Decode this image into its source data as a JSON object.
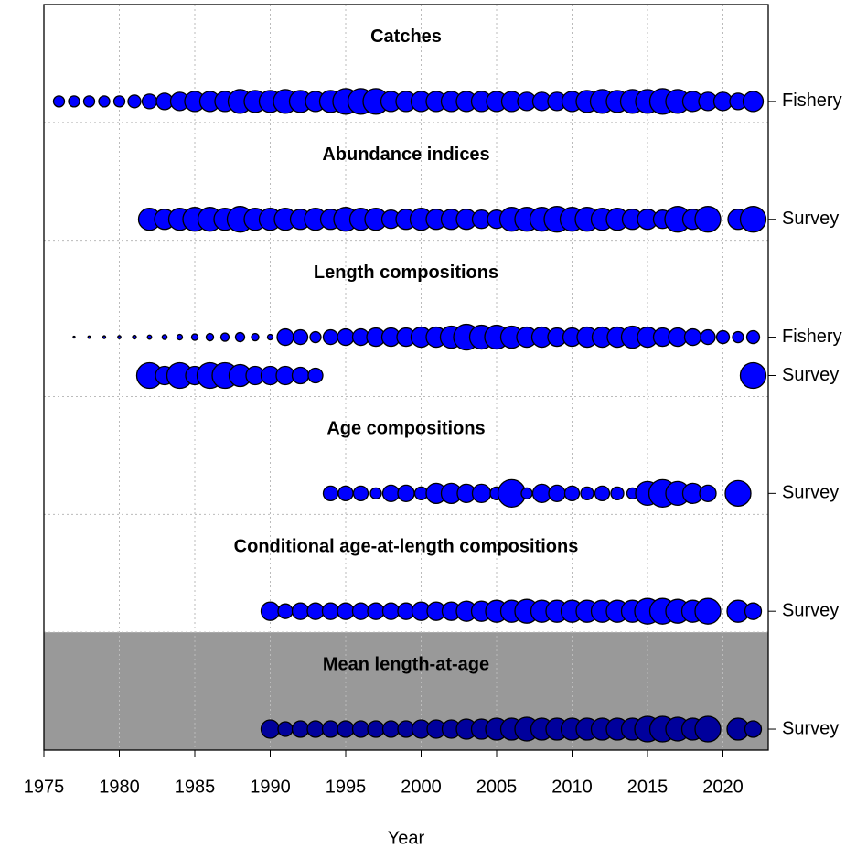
{
  "chart_data": {
    "type": "bubble",
    "xlabel": "Year",
    "xlim": [
      1975,
      2023
    ],
    "xticks": [
      1975,
      1980,
      1985,
      1990,
      1995,
      2000,
      2005,
      2010,
      2015,
      2020
    ],
    "grid": true,
    "color": "#0000ff",
    "panels": [
      {
        "title": "Catches",
        "rows": [
          {
            "name": "Fishery",
            "x": [
              1976,
              1977,
              1978,
              1979,
              1980,
              1981,
              1982,
              1983,
              1984,
              1985,
              1986,
              1987,
              1988,
              1989,
              1990,
              1991,
              1992,
              1993,
              1994,
              1995,
              1996,
              1997,
              1998,
              1999,
              2000,
              2001,
              2002,
              2003,
              2004,
              2005,
              2006,
              2007,
              2008,
              2009,
              2010,
              2011,
              2012,
              2013,
              2014,
              2015,
              2016,
              2017,
              2018,
              2019,
              2020,
              2021,
              2022
            ],
            "sizes": [
              6,
              6,
              6,
              6,
              6,
              7,
              8,
              9,
              10,
              11,
              11,
              11,
              13,
              12,
              12,
              13,
              12,
              11,
              12,
              14,
              14,
              14,
              11,
              11,
              11,
              11,
              11,
              11,
              11,
              11,
              11,
              10,
              10,
              10,
              11,
              12,
              13,
              12,
              13,
              13,
              14,
              13,
              11,
              10,
              10,
              9,
              11
            ]
          }
        ]
      },
      {
        "title": "Abundance indices",
        "rows": [
          {
            "name": "Survey",
            "x": [
              1982,
              1983,
              1984,
              1985,
              1986,
              1987,
              1988,
              1989,
              1990,
              1991,
              1992,
              1993,
              1994,
              1995,
              1996,
              1997,
              1998,
              1999,
              2000,
              2001,
              2002,
              2003,
              2004,
              2005,
              2006,
              2007,
              2008,
              2009,
              2010,
              2011,
              2012,
              2013,
              2014,
              2015,
              2016,
              2017,
              2018,
              2019,
              2021,
              2022
            ],
            "sizes": [
              12,
              11,
              12,
              13,
              13,
              12,
              14,
              12,
              12,
              12,
              11,
              12,
              11,
              13,
              12,
              12,
              10,
              11,
              12,
              11,
              11,
              11,
              10,
              10,
              13,
              13,
              13,
              14,
              13,
              13,
              12,
              12,
              11,
              11,
              10,
              14,
              11,
              14,
              11,
              14
            ]
          }
        ]
      },
      {
        "title": "Length compositions",
        "rows": [
          {
            "name": "Fishery",
            "x": [
              1977,
              1978,
              1979,
              1980,
              1981,
              1982,
              1983,
              1984,
              1985,
              1986,
              1987,
              1988,
              1989,
              1990,
              1991,
              1992,
              1993,
              1994,
              1995,
              1996,
              1997,
              1998,
              1999,
              2000,
              2001,
              2002,
              2003,
              2004,
              2005,
              2006,
              2007,
              2008,
              2009,
              2010,
              2011,
              2012,
              2013,
              2014,
              2015,
              2016,
              2017,
              2018,
              2019,
              2020,
              2021,
              2022
            ],
            "sizes": [
              1,
              1.3,
              1.5,
              1.7,
              2,
              2.3,
              2.6,
              3,
              3.5,
              4,
              4.5,
              5,
              4,
              3,
              9,
              8,
              6,
              8,
              9,
              9,
              10,
              10,
              10,
              11,
              11,
              12,
              14,
              13,
              13,
              12,
              11,
              11,
              10,
              10,
              11,
              11,
              11,
              12,
              11,
              10,
              10,
              9,
              8,
              7,
              6,
              7
            ]
          },
          {
            "name": "Survey",
            "x": [
              1982,
              1983,
              1984,
              1985,
              1986,
              1987,
              1988,
              1989,
              1990,
              1991,
              1992,
              1993,
              2022
            ],
            "sizes": [
              14,
              10,
              14,
              10,
              14,
              14,
              12,
              10,
              10,
              10,
              9,
              8,
              14
            ]
          }
        ]
      },
      {
        "title": "Age compositions",
        "rows": [
          {
            "name": "Survey",
            "x": [
              1994,
              1995,
              1996,
              1997,
              1998,
              1999,
              2000,
              2001,
              2002,
              2003,
              2004,
              2005,
              2006,
              2007,
              2008,
              2009,
              2010,
              2011,
              2012,
              2013,
              2014,
              2015,
              2016,
              2017,
              2018,
              2019,
              2021
            ],
            "sizes": [
              8,
              8,
              8,
              6,
              9,
              9,
              7,
              11,
              11,
              10,
              10,
              7,
              15,
              6,
              10,
              9,
              8,
              7,
              8,
              7,
              6,
              13,
              15,
              13,
              11,
              9,
              14
            ]
          }
        ]
      },
      {
        "title": "Conditional age-at-length compositions",
        "rows": [
          {
            "name": "Survey",
            "x": [
              1990,
              1991,
              1992,
              1993,
              1994,
              1995,
              1996,
              1997,
              1998,
              1999,
              2000,
              2001,
              2002,
              2003,
              2004,
              2005,
              2006,
              2007,
              2008,
              2009,
              2010,
              2011,
              2012,
              2013,
              2014,
              2015,
              2016,
              2017,
              2018,
              2019,
              2021,
              2022
            ],
            "sizes": [
              10,
              8,
              9,
              9,
              9,
              9,
              9,
              9,
              9,
              9,
              10,
              10,
              10,
              11,
              11,
              12,
              12,
              13,
              12,
              12,
              12,
              12,
              12,
              12,
              12,
              14,
              14,
              13,
              12,
              14,
              12,
              9
            ]
          }
        ]
      },
      {
        "title": "Mean length-at-age",
        "background": "#999999",
        "color": "#00009c",
        "rows": [
          {
            "name": "Survey",
            "x": [
              1990,
              1991,
              1992,
              1993,
              1994,
              1995,
              1996,
              1997,
              1998,
              1999,
              2000,
              2001,
              2002,
              2003,
              2004,
              2005,
              2006,
              2007,
              2008,
              2009,
              2010,
              2011,
              2012,
              2013,
              2014,
              2015,
              2016,
              2017,
              2018,
              2019,
              2021,
              2022
            ],
            "sizes": [
              10,
              8,
              9,
              9,
              9,
              9,
              9,
              9,
              9,
              9,
              10,
              10,
              10,
              11,
              11,
              12,
              12,
              13,
              12,
              12,
              12,
              12,
              12,
              12,
              12,
              14,
              14,
              13,
              12,
              14,
              12,
              9
            ]
          }
        ]
      }
    ]
  }
}
